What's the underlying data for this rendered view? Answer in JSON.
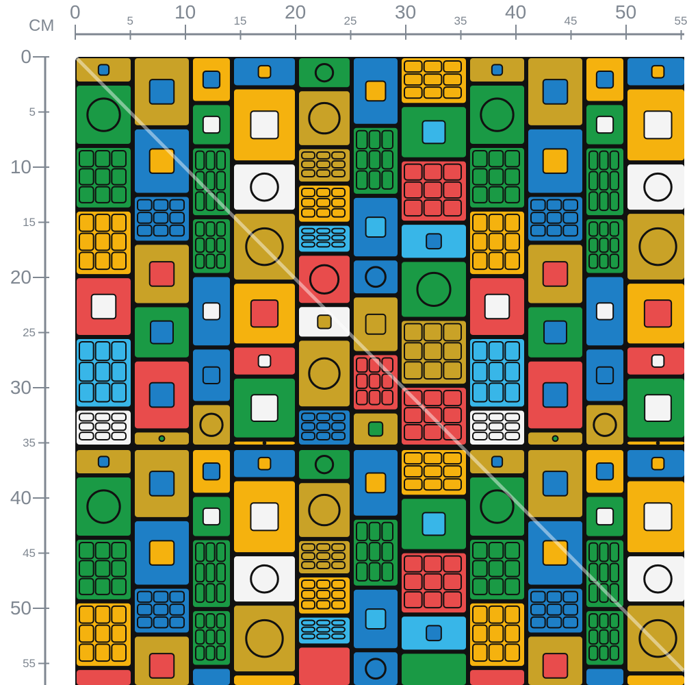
{
  "ruler": {
    "unit_label": "CM",
    "top_ticks": [
      "0",
      "5",
      "10",
      "15",
      "20",
      "25",
      "30",
      "35",
      "40",
      "45",
      "50",
      "55"
    ],
    "left_ticks": [
      "0",
      "5",
      "10",
      "15",
      "20",
      "25",
      "30",
      "35",
      "40",
      "45",
      "50",
      "55"
    ],
    "color": "#7f8791"
  },
  "fabric": {
    "pattern": "colorful geometric tribal blocks",
    "colors": [
      "#e84c4c",
      "#f5b20e",
      "#1e7fc6",
      "#1a9a45",
      "#f4f4f4",
      "#38b6e8",
      "#c9a227"
    ],
    "background": "#111111"
  }
}
